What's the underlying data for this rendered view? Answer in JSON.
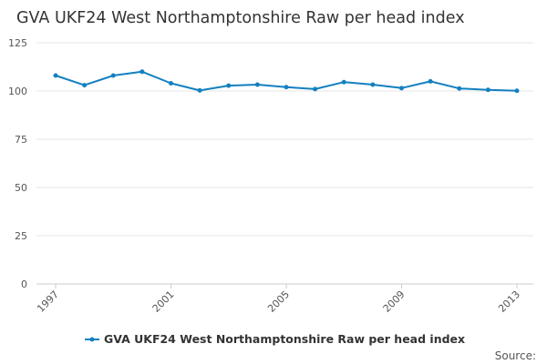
{
  "chart_data": {
    "type": "line",
    "title": "GVA UKF24 West Northamptonshire Raw per head index",
    "xlabel": "",
    "ylabel": "",
    "x": [
      1997,
      1998,
      1999,
      2000,
      2001,
      2002,
      2003,
      2004,
      2005,
      2006,
      2007,
      2008,
      2009,
      2010,
      2011,
      2012,
      2013
    ],
    "x_tick_labels": [
      "1997",
      "2001",
      "2005",
      "2009",
      "2013"
    ],
    "y_tick_labels": [
      "0",
      "25",
      "50",
      "75",
      "100",
      "125"
    ],
    "ylim": [
      0,
      125
    ],
    "grid": true,
    "legend_position": "bottom",
    "series": [
      {
        "name": "GVA UKF24 West Northamptonshire Raw per head index",
        "color": "#1380c0",
        "values": [
          108,
          103,
          108,
          110,
          104,
          100.3,
          102.8,
          103.3,
          102,
          101,
          104.6,
          103.3,
          101.5,
          105,
          101.3,
          100.6,
          100.1
        ]
      }
    ],
    "source_label": "Source:"
  }
}
